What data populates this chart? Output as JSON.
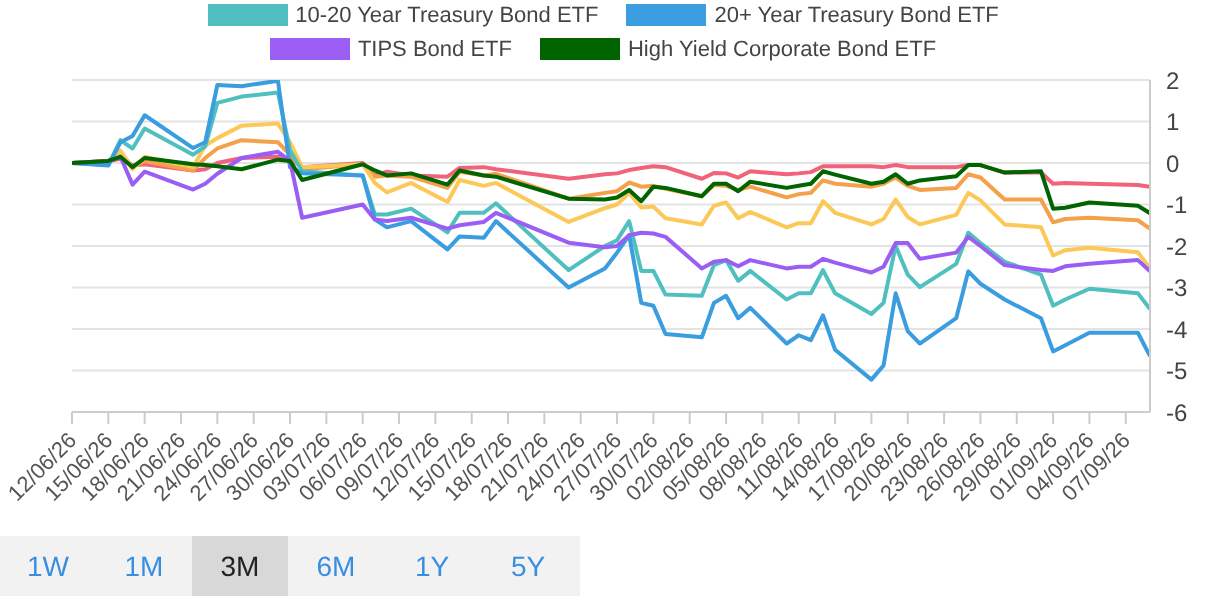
{
  "chart_data": {
    "type": "line",
    "x": [
      "--06-12",
      "--06-15",
      "--06-16",
      "--06-17",
      "--06-18",
      "--06-22",
      "--06-23",
      "--06-24",
      "--06-26",
      "--06-29",
      "--06-30",
      "--07-01",
      "--07-06",
      "--07-07",
      "--07-08",
      "--07-10",
      "--07-13",
      "--07-14",
      "--07-16",
      "--07-17",
      "--07-23",
      "--07-26",
      "--07-27",
      "--07-28",
      "--07-29",
      "--07-30",
      "--07-31",
      "--08-03",
      "--08-04",
      "--08-05",
      "--08-06",
      "--08-07",
      "--08-10",
      "--08-11",
      "--08-12",
      "--08-13",
      "--08-14",
      "--08-17",
      "--08-18",
      "--08-19",
      "--08-20",
      "--08-21",
      "--08-24",
      "--08-25",
      "--08-26",
      "--08-28",
      "--08-31",
      "--09-01",
      "--09-02",
      "--09-04",
      "--09-08",
      "--09-09"
    ],
    "series": [
      {
        "color": "#f0637a",
        "values": [
          0,
          0.05,
          0.1,
          -0.06,
          -0.03,
          -0.18,
          -0.15,
          0,
          0.12,
          0.15,
          0.1,
          -0.1,
          0,
          -0.3,
          -0.21,
          -0.3,
          -0.33,
          -0.12,
          -0.1,
          -0.15,
          -0.38,
          -0.27,
          -0.25,
          -0.17,
          -0.12,
          -0.08,
          -0.1,
          -0.38,
          -0.24,
          -0.25,
          -0.35,
          -0.2,
          -0.27,
          -0.25,
          -0.22,
          -0.08,
          -0.08,
          -0.08,
          -0.1,
          -0.05,
          -0.1,
          -0.1,
          -0.1,
          -0.05,
          -0.05,
          -0.23,
          -0.23,
          -0.5,
          -0.48,
          -0.5,
          -0.53,
          -0.57
        ]
      },
      {
        "color": "#f5a04a",
        "values": [
          0,
          0.05,
          0.25,
          -0.1,
          0.05,
          -0.18,
          0.12,
          0.35,
          0.55,
          0.5,
          0.2,
          -0.15,
          -0.03,
          -0.33,
          -0.3,
          -0.33,
          -0.6,
          -0.21,
          -0.3,
          -0.26,
          -0.86,
          -0.72,
          -0.68,
          -0.47,
          -0.57,
          -0.55,
          -0.62,
          -0.8,
          -0.53,
          -0.55,
          -0.65,
          -0.57,
          -0.83,
          -0.75,
          -0.72,
          -0.42,
          -0.5,
          -0.57,
          -0.5,
          -0.35,
          -0.55,
          -0.65,
          -0.6,
          -0.27,
          -0.35,
          -0.88,
          -0.88,
          -1.43,
          -1.35,
          -1.32,
          -1.38,
          -1.58
        ]
      },
      {
        "color": "#fcc857",
        "values": [
          0,
          0.05,
          0.3,
          -0.15,
          0.15,
          -0.1,
          0.42,
          0.6,
          0.9,
          0.95,
          0.5,
          -0.1,
          -0.03,
          -0.48,
          -0.71,
          -0.48,
          -0.94,
          -0.41,
          -0.55,
          -0.48,
          -1.42,
          -1.09,
          -1,
          -0.72,
          -1.07,
          -1.05,
          -1.33,
          -1.48,
          -1.03,
          -0.95,
          -1.33,
          -1.18,
          -1.55,
          -1.45,
          -1.45,
          -0.92,
          -1.2,
          -1.48,
          -1.35,
          -0.88,
          -1.3,
          -1.48,
          -1.25,
          -0.72,
          -0.9,
          -1.48,
          -1.55,
          -2.23,
          -2.1,
          -2.04,
          -2.15,
          -2.54
        ]
      },
      {
        "name": "10-20 Year Treasury Bond ETF",
        "color": "#4fc0bf",
        "values": [
          0,
          -0.05,
          0.55,
          0.35,
          0.83,
          0.2,
          0.4,
          1.45,
          1.6,
          1.7,
          0.3,
          -0.2,
          -0.3,
          -1.24,
          -1.24,
          -1.1,
          -1.67,
          -1.2,
          -1.2,
          -0.97,
          -2.58,
          -2,
          -1.86,
          -1.4,
          -2.6,
          -2.6,
          -3.17,
          -3.2,
          -2.46,
          -2.34,
          -2.84,
          -2.6,
          -3.29,
          -3.14,
          -3.14,
          -2.58,
          -3.14,
          -3.64,
          -3.37,
          -2,
          -2.69,
          -2.99,
          -2.43,
          -1.68,
          -1.93,
          -2.38,
          -2.69,
          -3.44,
          -3.29,
          -3.03,
          -3.14,
          -3.52
        ]
      },
      {
        "name": "20+ Year Treasury Bond ETF",
        "color": "#3a9de0",
        "values": [
          0,
          -0.06,
          0.5,
          0.65,
          1.15,
          0.36,
          0.5,
          1.88,
          1.85,
          1.98,
          -0.1,
          -0.25,
          -0.3,
          -1.36,
          -1.55,
          -1.4,
          -2.08,
          -1.77,
          -1.8,
          -1.4,
          -3,
          -2.54,
          -2.16,
          -1.74,
          -3.37,
          -3.44,
          -4.12,
          -4.2,
          -3.37,
          -3.2,
          -3.74,
          -3.49,
          -4.35,
          -4.15,
          -4.27,
          -3.67,
          -4.5,
          -5.22,
          -4.88,
          -3.14,
          -4.05,
          -4.35,
          -3.74,
          -2.61,
          -2.91,
          -3.29,
          -3.74,
          -4.54,
          -4.39,
          -4.09,
          -4.09,
          -4.65
        ]
      },
      {
        "name": "TIPS Bond ETF",
        "color": "#9b5ef5",
        "values": [
          0,
          0.05,
          0.15,
          -0.52,
          -0.21,
          -0.64,
          -0.5,
          -0.26,
          0.12,
          0.27,
          0.05,
          -1.32,
          -1,
          -1.36,
          -1.4,
          -1.32,
          -1.58,
          -1.5,
          -1.42,
          -1.2,
          -1.92,
          -2.03,
          -2,
          -1.74,
          -1.68,
          -1.7,
          -1.78,
          -2.54,
          -2.38,
          -2.34,
          -2.49,
          -2.34,
          -2.54,
          -2.5,
          -2.5,
          -2.31,
          -2.4,
          -2.64,
          -2.5,
          -1.93,
          -1.93,
          -2.31,
          -2.16,
          -1.78,
          -2,
          -2.46,
          -2.58,
          -2.6,
          -2.49,
          -2.43,
          -2.34,
          -2.61
        ]
      },
      {
        "name": "High Yield Corporate Bond ETF",
        "color": "#006400",
        "values": [
          0,
          0.05,
          0.15,
          -0.1,
          0.12,
          -0.03,
          -0.05,
          -0.08,
          -0.15,
          0.08,
          0.05,
          -0.41,
          -0.03,
          -0.18,
          -0.3,
          -0.25,
          -0.52,
          -0.18,
          -0.3,
          -0.33,
          -0.86,
          -0.88,
          -0.83,
          -0.65,
          -0.92,
          -0.57,
          -0.6,
          -0.8,
          -0.5,
          -0.5,
          -0.68,
          -0.45,
          -0.6,
          -0.55,
          -0.5,
          -0.2,
          -0.28,
          -0.5,
          -0.45,
          -0.27,
          -0.5,
          -0.42,
          -0.32,
          -0.05,
          -0.05,
          -0.23,
          -0.2,
          -1.1,
          -1.08,
          -0.95,
          -1.03,
          -1.21
        ]
      }
    ],
    "xlim": [
      "--06-12",
      "--09-09"
    ],
    "xticks": [
      {
        "value": "--06-12",
        "label": "12/06/26"
      },
      {
        "value": "--06-15",
        "label": "15/06/26"
      },
      {
        "value": "--06-18",
        "label": "18/06/26"
      },
      {
        "value": "--06-21",
        "label": "21/06/26"
      },
      {
        "value": "--06-24",
        "label": "24/06/26"
      },
      {
        "value": "--06-27",
        "label": "27/06/26"
      },
      {
        "value": "--06-30",
        "label": "30/06/26"
      },
      {
        "value": "--07-03",
        "label": "03/07/26"
      },
      {
        "value": "--07-06",
        "label": "06/07/26"
      },
      {
        "value": "--07-09",
        "label": "09/07/26"
      },
      {
        "value": "--07-12",
        "label": "12/07/26"
      },
      {
        "value": "--07-15",
        "label": "15/07/26"
      },
      {
        "value": "--07-18",
        "label": "18/07/26"
      },
      {
        "value": "--07-21",
        "label": "21/07/26"
      },
      {
        "value": "--07-24",
        "label": "24/07/26"
      },
      {
        "value": "--07-27",
        "label": "27/07/26"
      },
      {
        "value": "--07-30",
        "label": "30/07/26"
      },
      {
        "value": "--08-02",
        "label": "02/08/26"
      },
      {
        "value": "--08-05",
        "label": "05/08/26"
      },
      {
        "value": "--08-08",
        "label": "08/08/26"
      },
      {
        "value": "--08-11",
        "label": "11/08/26"
      },
      {
        "value": "--08-14",
        "label": "14/08/26"
      },
      {
        "value": "--08-17",
        "label": "17/08/26"
      },
      {
        "value": "--08-20",
        "label": "20/08/26"
      },
      {
        "value": "--08-23",
        "label": "23/08/26"
      },
      {
        "value": "--08-26",
        "label": "26/08/26"
      },
      {
        "value": "--08-29",
        "label": "29/08/26"
      },
      {
        "value": "--09-01",
        "label": "01/09/26"
      },
      {
        "value": "--09-04",
        "label": "04/09/26"
      },
      {
        "value": "--09-07",
        "label": "07/09/26"
      }
    ],
    "ylim": [
      -6,
      2
    ],
    "yticks": [
      -6,
      -5,
      -4,
      -3,
      -2,
      -1,
      0,
      1,
      2
    ],
    "grid": "y",
    "legend": "top",
    "marker": "none",
    "line_style": "solid",
    "annotations": [
      "1W",
      "1M",
      "3M",
      "6M",
      "1Y",
      "5Y"
    ]
  }
}
